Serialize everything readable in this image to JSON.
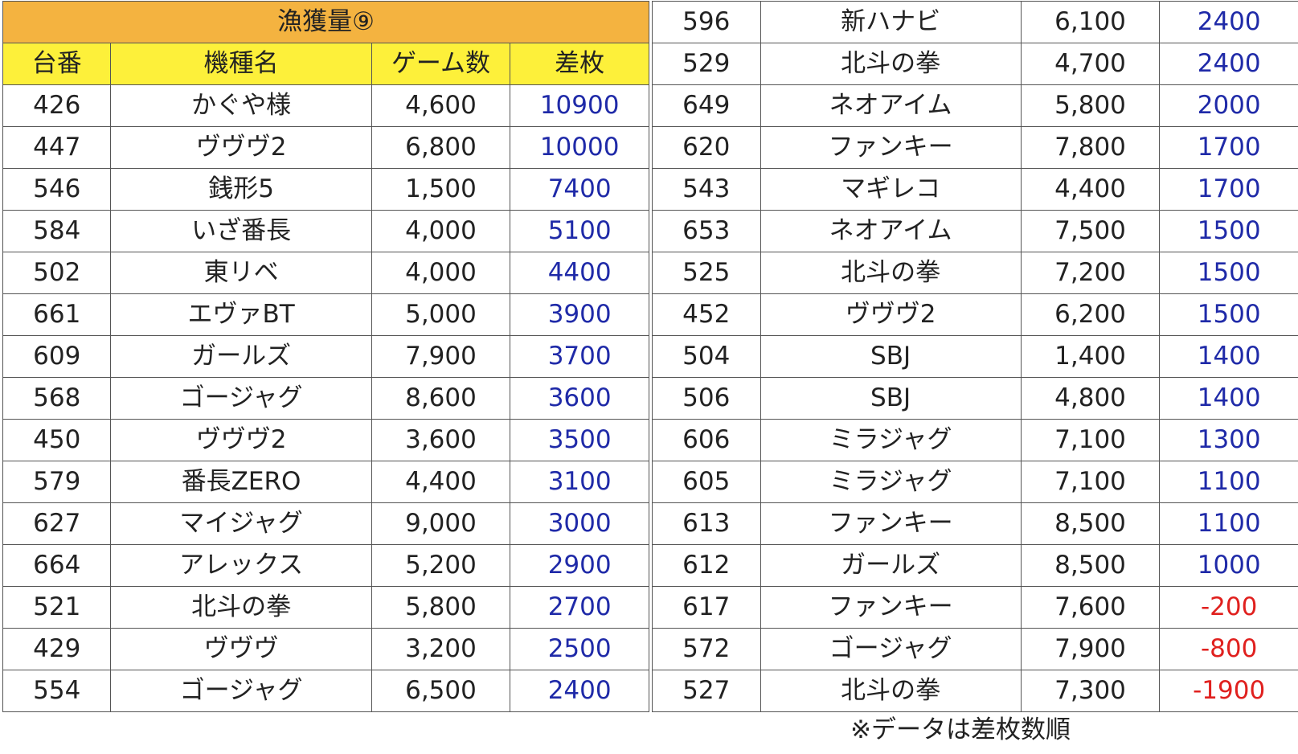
{
  "title": "漁獲量⑨",
  "headers": {
    "no": "台番",
    "machine": "機種名",
    "games": "ゲーム数",
    "diff": "差枚"
  },
  "left_rows": [
    {
      "no": "426",
      "machine": "かぐや様",
      "games": "4,600",
      "diff": "10900"
    },
    {
      "no": "447",
      "machine": "ヴヴヴ2",
      "games": "6,800",
      "diff": "10000"
    },
    {
      "no": "546",
      "machine": "銭形5",
      "games": "1,500",
      "diff": "7400"
    },
    {
      "no": "584",
      "machine": "いざ番長",
      "games": "4,000",
      "diff": "5100"
    },
    {
      "no": "502",
      "machine": "東リベ",
      "games": "4,000",
      "diff": "4400"
    },
    {
      "no": "661",
      "machine": "エヴァBT",
      "games": "5,000",
      "diff": "3900"
    },
    {
      "no": "609",
      "machine": "ガールズ",
      "games": "7,900",
      "diff": "3700"
    },
    {
      "no": "568",
      "machine": "ゴージャグ",
      "games": "8,600",
      "diff": "3600"
    },
    {
      "no": "450",
      "machine": "ヴヴヴ2",
      "games": "3,600",
      "diff": "3500"
    },
    {
      "no": "579",
      "machine": "番長ZERO",
      "games": "4,400",
      "diff": "3100"
    },
    {
      "no": "627",
      "machine": "マイジャグ",
      "games": "9,000",
      "diff": "3000"
    },
    {
      "no": "664",
      "machine": "アレックス",
      "games": "5,200",
      "diff": "2900"
    },
    {
      "no": "521",
      "machine": "北斗の拳",
      "games": "5,800",
      "diff": "2700"
    },
    {
      "no": "429",
      "machine": "ヴヴヴ",
      "games": "3,200",
      "diff": "2500"
    },
    {
      "no": "554",
      "machine": "ゴージャグ",
      "games": "6,500",
      "diff": "2400"
    }
  ],
  "right_rows": [
    {
      "no": "596",
      "machine": "新ハナビ",
      "games": "6,100",
      "diff": "2400"
    },
    {
      "no": "529",
      "machine": "北斗の拳",
      "games": "4,700",
      "diff": "2400"
    },
    {
      "no": "649",
      "machine": "ネオアイム",
      "games": "5,800",
      "diff": "2000"
    },
    {
      "no": "620",
      "machine": "ファンキー",
      "games": "7,800",
      "diff": "1700"
    },
    {
      "no": "543",
      "machine": "マギレコ",
      "games": "4,400",
      "diff": "1700"
    },
    {
      "no": "653",
      "machine": "ネオアイム",
      "games": "7,500",
      "diff": "1500"
    },
    {
      "no": "525",
      "machine": "北斗の拳",
      "games": "7,200",
      "diff": "1500"
    },
    {
      "no": "452",
      "machine": "ヴヴヴ2",
      "games": "6,200",
      "diff": "1500"
    },
    {
      "no": "504",
      "machine": "SBJ",
      "games": "1,400",
      "diff": "1400"
    },
    {
      "no": "506",
      "machine": "SBJ",
      "games": "4,800",
      "diff": "1400"
    },
    {
      "no": "606",
      "machine": "ミラジャグ",
      "games": "7,100",
      "diff": "1300"
    },
    {
      "no": "605",
      "machine": "ミラジャグ",
      "games": "7,100",
      "diff": "1100"
    },
    {
      "no": "613",
      "machine": "ファンキー",
      "games": "8,500",
      "diff": "1100"
    },
    {
      "no": "612",
      "machine": "ガールズ",
      "games": "8,500",
      "diff": "1000"
    },
    {
      "no": "617",
      "machine": "ファンキー",
      "games": "7,600",
      "diff": "-200"
    },
    {
      "no": "572",
      "machine": "ゴージャグ",
      "games": "7,900",
      "diff": "-800"
    },
    {
      "no": "527",
      "machine": "北斗の拳",
      "games": "7,300",
      "diff": "-1900"
    }
  ],
  "footnote": "※データは差枚数順",
  "colors": {
    "title_bg": "#f4b340",
    "header_bg": "#fdf03a",
    "positive": "#1f2aa8",
    "negative": "#e0201e"
  }
}
